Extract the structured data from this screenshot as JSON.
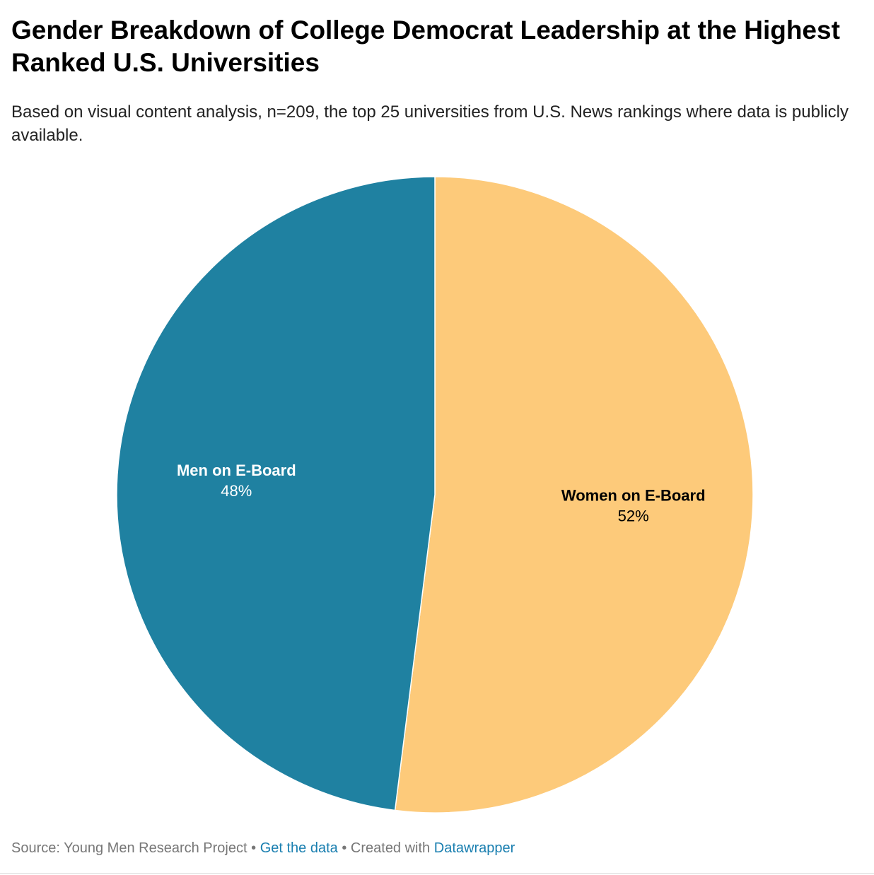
{
  "chart_data": {
    "type": "pie",
    "title": "Gender Breakdown of College Democrat Leadership at the Highest Ranked U.S. Universities",
    "subtitle": "Based on visual content analysis, n=209, the top 25 universities from U.S. News rankings where data is publicly available.",
    "categories": [
      "Women on E-Board",
      "Men on E-Board"
    ],
    "values": [
      52,
      48
    ],
    "value_labels": [
      "52%",
      "48%"
    ],
    "colors": [
      "#fdca7a",
      "#1f81a1"
    ],
    "label_colors": [
      "#000000",
      "#ffffff"
    ],
    "source": "Source: Young Men Research Project",
    "separator": "•",
    "get_data": "Get the data",
    "created_with": "Created with",
    "tool": "Datawrapper"
  }
}
